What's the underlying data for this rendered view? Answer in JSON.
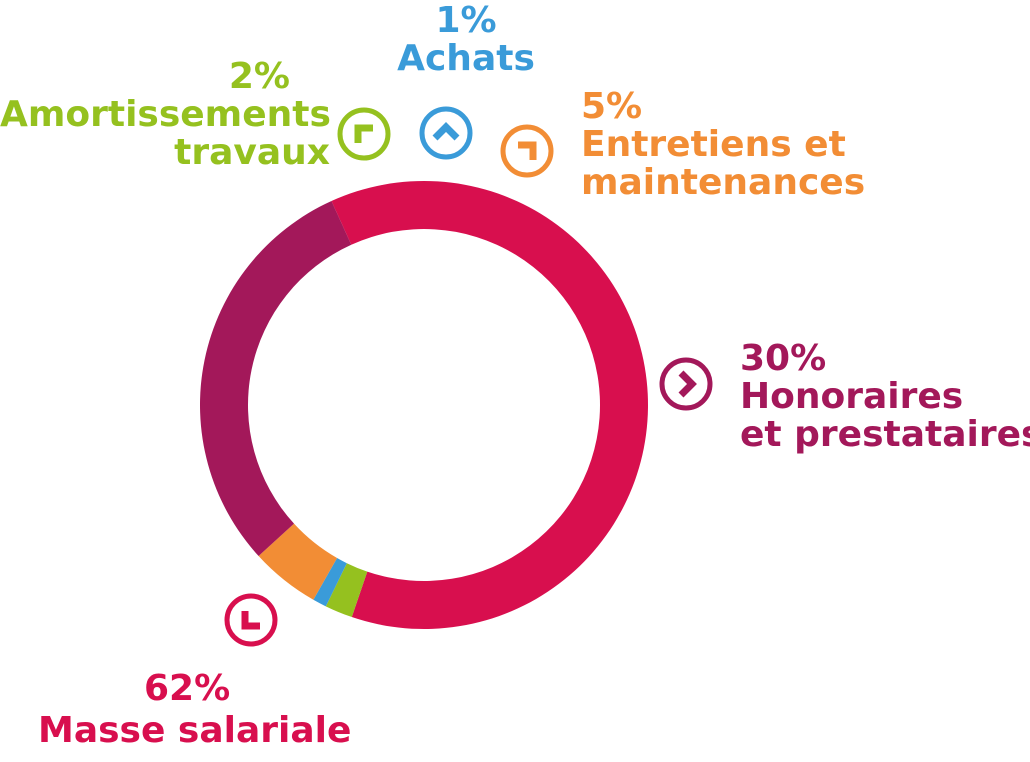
{
  "chart_data": {
    "type": "pie",
    "variant": "donut",
    "slices": [
      {
        "label_lines": [
          "Masse salariale"
        ],
        "value": 62,
        "pct": "62%",
        "color": "#d80f4e",
        "icon": "chevron-down-left-icon"
      },
      {
        "label_lines": [
          "Amortissements",
          "travaux"
        ],
        "value": 2,
        "pct": "2%",
        "color": "#95c11f",
        "icon": "chevron-up-left-icon"
      },
      {
        "label_lines": [
          "Achats"
        ],
        "value": 1,
        "pct": "1%",
        "color": "#3a9bd9",
        "icon": "chevron-up-icon"
      },
      {
        "label_lines": [
          "Entretiens et",
          "maintenances"
        ],
        "value": 5,
        "pct": "5%",
        "color": "#f28d35",
        "icon": "chevron-up-right-icon"
      },
      {
        "label_lines": [
          "Honoraires",
          "et prestataires"
        ],
        "value": 30,
        "pct": "30%",
        "color": "#a3185a",
        "icon": "chevron-right-icon"
      }
    ]
  }
}
